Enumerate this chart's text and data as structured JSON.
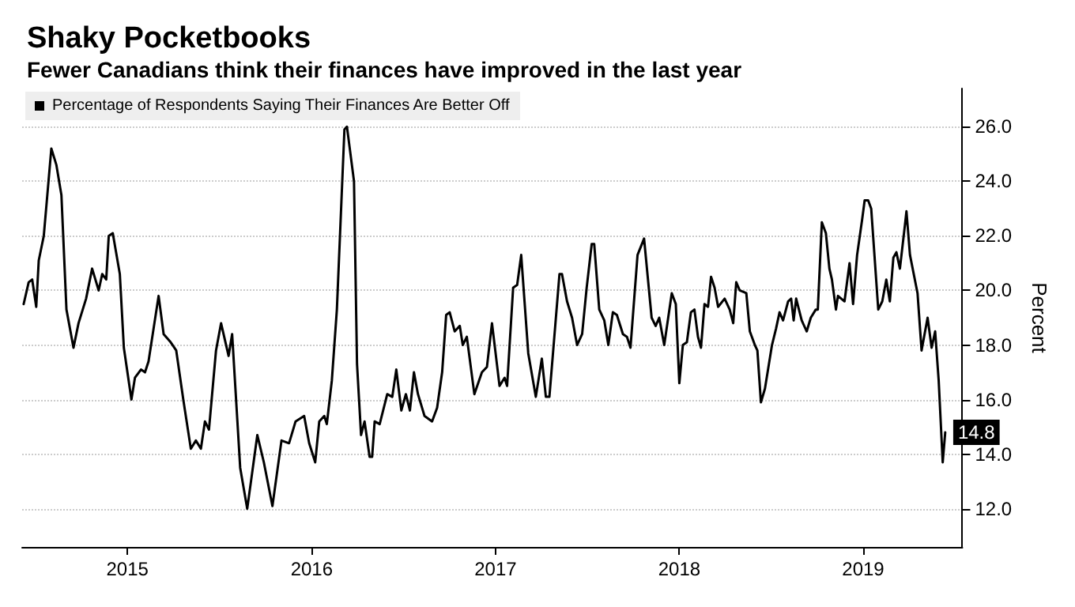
{
  "chart_data": {
    "type": "line",
    "title": "Shaky Pocketbooks",
    "subtitle": "Fewer Canadians think their finances have improved in the last year",
    "ylabel": "Percent",
    "x": [
      "2014-12-08",
      "2014-12-18",
      "2014-12-25",
      "2015-01-02",
      "2015-01-07",
      "2015-01-17",
      "2015-02-01",
      "2015-02-11",
      "2015-02-21",
      "2015-03-03",
      "2015-03-17",
      "2015-03-27",
      "2015-04-11",
      "2015-04-23",
      "2015-05-06",
      "2015-05-13",
      "2015-05-21",
      "2015-05-26",
      "2015-06-03",
      "2015-06-17",
      "2015-06-25",
      "2015-07-10",
      "2015-07-17",
      "2015-07-29",
      "2015-08-06",
      "2015-08-13",
      "2015-09-02",
      "2015-09-12",
      "2015-09-26",
      "2015-10-07",
      "2015-10-21",
      "2015-11-05",
      "2015-11-15",
      "2015-11-25",
      "2015-12-03",
      "2015-12-11",
      "2015-12-25",
      "2016-01-04",
      "2016-01-19",
      "2016-01-26",
      "2016-02-11",
      "2016-02-25",
      "2016-03-16",
      "2016-03-29",
      "2016-04-15",
      "2016-05-03",
      "2016-05-18",
      "2016-05-31",
      "2016-06-17",
      "2016-06-27",
      "2016-07-09",
      "2016-07-17",
      "2016-07-27",
      "2016-08-01",
      "2016-08-11",
      "2016-08-21",
      "2016-09-05",
      "2016-09-10",
      "2016-09-24",
      "2016-09-30",
      "2016-10-08",
      "2016-10-15",
      "2016-10-25",
      "2016-10-30",
      "2016-11-04",
      "2016-11-14",
      "2016-11-29",
      "2016-12-09",
      "2016-12-17",
      "2016-12-27",
      "2017-01-05",
      "2017-01-13",
      "2017-01-21",
      "2017-01-29",
      "2017-02-11",
      "2017-02-26",
      "2017-03-08",
      "2017-03-18",
      "2017-03-26",
      "2017-04-02",
      "2017-04-12",
      "2017-04-22",
      "2017-04-28",
      "2017-05-06",
      "2017-05-21",
      "2017-06-05",
      "2017-06-15",
      "2017-06-25",
      "2017-07-10",
      "2017-07-20",
      "2017-07-25",
      "2017-08-06",
      "2017-08-14",
      "2017-08-22",
      "2017-09-05",
      "2017-09-20",
      "2017-10-02",
      "2017-10-10",
      "2017-10-17",
      "2017-11-06",
      "2017-11-11",
      "2017-11-21",
      "2017-12-01",
      "2017-12-11",
      "2017-12-21",
      "2017-12-30",
      "2018-01-09",
      "2018-01-14",
      "2018-01-24",
      "2018-02-03",
      "2018-02-11",
      "2018-02-20",
      "2018-02-28",
      "2018-03-12",
      "2018-03-20",
      "2018-03-27",
      "2018-04-10",
      "2018-04-23",
      "2018-05-08",
      "2018-05-16",
      "2018-05-23",
      "2018-06-02",
      "2018-06-17",
      "2018-06-25",
      "2018-07-02",
      "2018-07-09",
      "2018-07-17",
      "2018-07-25",
      "2018-08-01",
      "2018-08-08",
      "2018-08-14",
      "2018-08-21",
      "2018-08-28",
      "2018-09-03",
      "2018-09-10",
      "2018-09-17",
      "2018-09-30",
      "2018-10-10",
      "2018-10-17",
      "2018-10-23",
      "2018-10-30",
      "2018-11-12",
      "2018-11-19",
      "2018-11-29",
      "2018-12-04",
      "2018-12-11",
      "2018-12-19",
      "2019-01-02",
      "2019-01-10",
      "2019-01-17",
      "2019-01-24",
      "2019-02-03",
      "2019-02-09",
      "2019-02-14",
      "2019-02-19",
      "2019-03-02",
      "2019-03-12",
      "2019-03-20",
      "2019-03-30",
      "2019-04-03",
      "2019-04-11",
      "2019-04-19",
      "2019-04-26",
      "2019-05-01",
      "2019-05-09",
      "2019-05-13",
      "2019-05-26",
      "2019-06-05",
      "2019-06-12",
      "2019-06-20",
      "2019-06-30",
      "2019-07-05",
      "2019-07-12",
      "2019-07-18",
      "2019-08-01",
      "2019-08-09",
      "2019-08-17",
      "2019-08-24",
      "2019-08-31",
      "2019-09-06",
      "2019-09-13",
      "2019-09-23",
      "2019-09-26",
      "2019-10-03",
      "2019-10-18",
      "2019-10-26",
      "2019-11-07",
      "2019-11-15",
      "2019-11-22",
      "2019-11-29",
      "2019-12-07",
      "2019-12-12"
    ],
    "series": [
      {
        "name": "Percentage of Respondents Saying Their Finances Are Better Off",
        "color": "#000000",
        "values": [
          19.5,
          20.3,
          20.4,
          19.4,
          21.1,
          22.0,
          25.2,
          24.6,
          23.5,
          19.3,
          17.9,
          18.8,
          19.7,
          20.8,
          20.0,
          20.6,
          20.4,
          22.0,
          22.1,
          20.6,
          17.9,
          16.0,
          16.8,
          17.1,
          17.0,
          17.4,
          19.8,
          18.4,
          18.1,
          17.8,
          16.0,
          14.2,
          14.5,
          14.2,
          15.2,
          14.9,
          17.8,
          18.8,
          17.6,
          18.4,
          13.5,
          12.0,
          14.7,
          13.7,
          12.1,
          14.5,
          14.4,
          15.2,
          15.4,
          14.4,
          13.7,
          15.2,
          15.4,
          15.1,
          16.7,
          19.3,
          25.9,
          26.0,
          24.0,
          17.3,
          14.7,
          15.2,
          13.9,
          13.9,
          15.2,
          15.1,
          16.2,
          16.1,
          17.1,
          15.6,
          16.2,
          15.6,
          17.0,
          16.2,
          15.4,
          15.2,
          15.7,
          17.0,
          19.1,
          19.2,
          18.5,
          18.7,
          18.0,
          18.3,
          16.2,
          17.0,
          17.2,
          18.8,
          16.5,
          16.8,
          16.5,
          20.1,
          20.2,
          21.3,
          17.7,
          16.1,
          17.5,
          16.1,
          16.1,
          20.6,
          20.6,
          19.6,
          19.0,
          18.0,
          18.4,
          20.1,
          21.7,
          21.7,
          19.3,
          18.9,
          18.0,
          19.2,
          19.1,
          18.4,
          18.3,
          17.9,
          21.3,
          21.9,
          19.0,
          18.7,
          19.0,
          18.0,
          19.9,
          19.5,
          16.6,
          18.0,
          18.1,
          19.2,
          19.3,
          18.3,
          17.9,
          19.5,
          19.4,
          20.5,
          20.1,
          19.4,
          19.7,
          19.3,
          18.8,
          20.3,
          20.0,
          19.9,
          18.5,
          18.0,
          17.8,
          15.9,
          16.4,
          18.0,
          18.6,
          19.2,
          18.9,
          19.6,
          19.7,
          18.9,
          19.7,
          18.9,
          18.5,
          19.0,
          19.3,
          19.3,
          22.5,
          22.1,
          20.8,
          20.4,
          19.3,
          19.8,
          19.6,
          21.0,
          19.5,
          21.3,
          22.6,
          23.3,
          23.3,
          23.0,
          19.3,
          19.6,
          20.4,
          19.6,
          21.2,
          21.4,
          20.8,
          22.4,
          22.9,
          21.3,
          19.9,
          17.8,
          19.0,
          17.9,
          18.5,
          16.7,
          13.7,
          14.8
        ],
        "value_labels": [
          null,
          null,
          null,
          null,
          null,
          null,
          null,
          null,
          null,
          null,
          null,
          null,
          null,
          null,
          null,
          null,
          null,
          null,
          null,
          null,
          null,
          null,
          null,
          null,
          null,
          null,
          null,
          null,
          null,
          null,
          null,
          null,
          null,
          null,
          null,
          null,
          null,
          null,
          null,
          null,
          null,
          null,
          null,
          null,
          null,
          null,
          null,
          null,
          null,
          null,
          null,
          null,
          null,
          null,
          null,
          null,
          null,
          null,
          null,
          null,
          null,
          null,
          null,
          null,
          null,
          null,
          null,
          null,
          null,
          null,
          null,
          null,
          null,
          null,
          null,
          null,
          null,
          null,
          null,
          null,
          null,
          null,
          null,
          null,
          null,
          null,
          null,
          null,
          null,
          null,
          null,
          null,
          null,
          null,
          null,
          null,
          null,
          null,
          null,
          null,
          null,
          null,
          null,
          null,
          null,
          null,
          null,
          null,
          null,
          null,
          null,
          null,
          null,
          null,
          null,
          null,
          null,
          null,
          null,
          null,
          null,
          null,
          null,
          null,
          null,
          null,
          null,
          null,
          null,
          null,
          null,
          null,
          null,
          null,
          null,
          null,
          null,
          null,
          null,
          null,
          null,
          null,
          null,
          null,
          null,
          null,
          null,
          null,
          null,
          null,
          null,
          null,
          null,
          null,
          null,
          null,
          null,
          null,
          null,
          null,
          null,
          null,
          null,
          null,
          null,
          null,
          null,
          null,
          null,
          null,
          null,
          null,
          null,
          null,
          null,
          null,
          null,
          null,
          null,
          null,
          null,
          null,
          null,
          null,
          null,
          null,
          null,
          null,
          null,
          null,
          null,
          "14.8"
        ]
      }
    ],
    "xlim": [
      "2014-12-05",
      "2020-01-15"
    ],
    "xticks": [
      {
        "value": "2015-07-02",
        "label": "2015"
      },
      {
        "value": "2016-07-02",
        "label": "2016"
      },
      {
        "value": "2017-07-02",
        "label": "2017"
      },
      {
        "value": "2018-07-02",
        "label": "2018"
      },
      {
        "value": "2019-07-02",
        "label": "2019"
      }
    ],
    "ylim": [
      10.6,
      27.4
    ],
    "yticks": [
      {
        "value": 12,
        "label": "12.0"
      },
      {
        "value": 14,
        "label": "14.0"
      },
      {
        "value": 16,
        "label": "16.0"
      },
      {
        "value": 18,
        "label": "18.0"
      },
      {
        "value": 20,
        "label": "20.0"
      },
      {
        "value": 22,
        "label": "22.0"
      },
      {
        "value": 24,
        "label": "24.0"
      },
      {
        "value": 26,
        "label": "26.0"
      }
    ],
    "grid": "y",
    "legend": "top left",
    "marker": "none",
    "line_style": "solid"
  }
}
